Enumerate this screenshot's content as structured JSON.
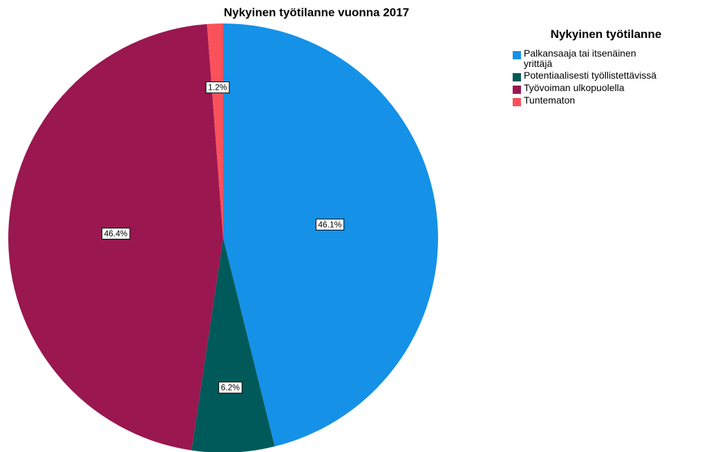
{
  "chart_data": {
    "type": "pie",
    "title": "Nykyinen työtilanne vuonna 2017",
    "legend_title": "Nykyinen työtilanne",
    "categories": [
      "Palkansaaja tai itsenäinen\nyrittäjä",
      "Potentiaalisesti työllistettävissä",
      "Työvoiman ulkopuolella",
      "Tuntematon"
    ],
    "values": [
      46.1,
      6.2,
      46.4,
      1.2
    ],
    "value_labels": [
      "46.1%",
      "6.2%",
      "46.4%",
      "1.2%"
    ],
    "colors": [
      "#1591e8",
      "#005a5a",
      "#9a1750",
      "#f9525a"
    ],
    "legend": "top-right"
  }
}
